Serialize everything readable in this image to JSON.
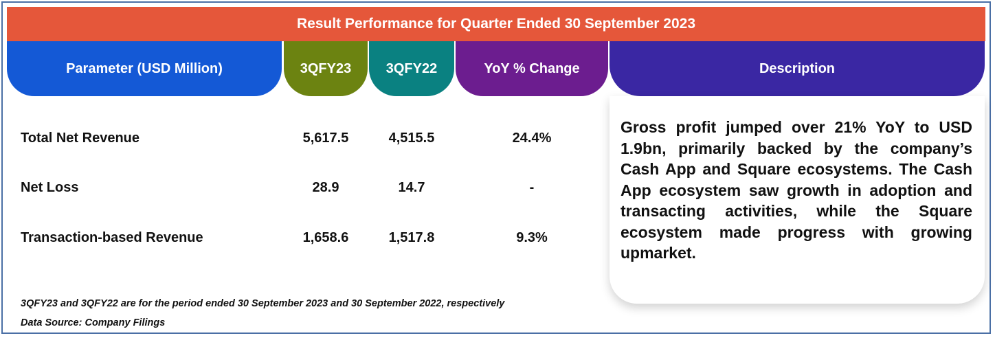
{
  "title": "Result Performance for Quarter Ended 30 September 2023",
  "headers": {
    "parameter": "Parameter (USD Million)",
    "q23": "3QFY23",
    "q22": "3QFY22",
    "yoy": "YoY % Change",
    "description": "Description"
  },
  "rows": [
    {
      "label": "Total Net Revenue",
      "q23": "5,617.5",
      "q22": "4,515.5",
      "yoy": "24.4%"
    },
    {
      "label": "Net Loss",
      "q23": "28.9",
      "q22": "14.7",
      "yoy": "-"
    },
    {
      "label": "Transaction-based Revenue",
      "q23": "1,658.6",
      "q22": "1,517.8",
      "yoy": "9.3%"
    }
  ],
  "description": "Gross profit jumped over 21% YoY to USD 1.9bn, primarily backed by the company’s Cash App and Square ecosystems. The Cash App ecosystem saw growth in adoption and transacting activities, while the Square ecosystem made progress with growing upmarket.",
  "notes": {
    "period": "3QFY23 and 3QFY22 are for the period ended 30 September 2023 and 30 September 2022, respectively",
    "source": "Data Source: Company Filings"
  },
  "colors": {
    "title_bar": "#e5573a",
    "parameter_header": "#1459d6",
    "q23_header": "#6c8311",
    "q22_header": "#0a8181",
    "yoy_header": "#6c1d8f",
    "description_header": "#3a27a3"
  }
}
